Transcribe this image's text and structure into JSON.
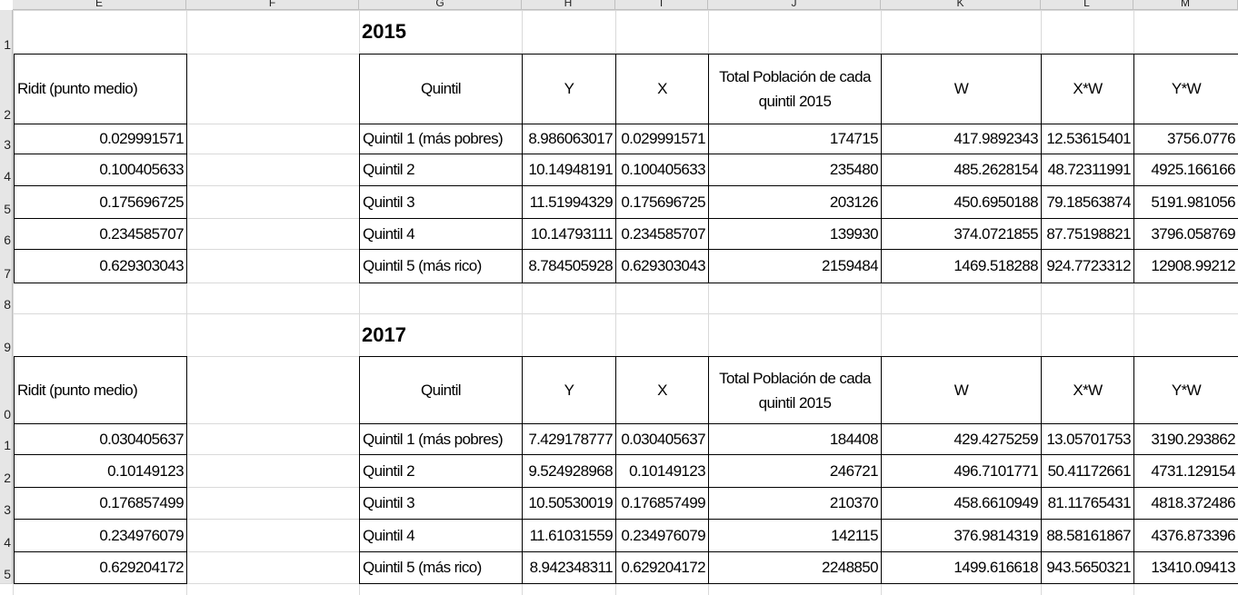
{
  "column_headers": [
    "E",
    "F",
    "G",
    "H",
    "I",
    "J",
    "K",
    "L",
    "M"
  ],
  "row_numbers": [
    "1",
    "2",
    "3",
    "4",
    "5",
    "6",
    "7",
    "8",
    "9",
    "0",
    "1",
    "2",
    "3",
    "4",
    "5"
  ],
  "t2015": {
    "year": "2015",
    "ridit_header": "Ridit (punto medio)",
    "headers": [
      "Quintil",
      "Y",
      "X",
      "Total Población de cada quintil 2015",
      "W",
      "X*W",
      "Y*W"
    ],
    "ridit": [
      "0.029991571",
      "0.100405633",
      "0.175696725",
      "0.234585707",
      "0.629303043"
    ],
    "rows": [
      [
        "Quintil 1 (más pobres)",
        "8.986063017",
        "0.029991571",
        "174715",
        "417.9892343",
        "12.53615401",
        "3756.0776"
      ],
      [
        "Quintil 2",
        "10.14948191",
        "0.100405633",
        "235480",
        "485.2628154",
        "48.72311991",
        "4925.166166"
      ],
      [
        "Quintil 3",
        "11.51994329",
        "0.175696725",
        "203126",
        "450.6950188",
        "79.18563874",
        "5191.981056"
      ],
      [
        "Quintil 4",
        "10.14793111",
        "0.234585707",
        "139930",
        "374.0721855",
        "87.75198821",
        "3796.058769"
      ],
      [
        "Quintil 5 (más rico)",
        "8.784505928",
        "0.629303043",
        "2159484",
        "1469.518288",
        "924.7723312",
        "12908.99212"
      ]
    ]
  },
  "t2017": {
    "year": "2017",
    "ridit_header": "Ridit (punto medio)",
    "headers": [
      "Quintil",
      "Y",
      "X",
      "Total Población de cada quintil 2015",
      "W",
      "X*W",
      "Y*W"
    ],
    "ridit": [
      "0.030405637",
      "0.10149123",
      "0.176857499",
      "0.234976079",
      "0.629204172"
    ],
    "rows": [
      [
        "Quintil 1 (más pobres)",
        "7.429178777",
        "0.030405637",
        "184408",
        "429.4275259",
        "13.05701753",
        "3190.293862"
      ],
      [
        "Quintil 2",
        "9.524928968",
        "0.10149123",
        "246721",
        "496.7101771",
        "50.41172661",
        "4731.129154"
      ],
      [
        "Quintil 3",
        "10.50530019",
        "0.176857499",
        "210370",
        "458.6610949",
        "81.11765431",
        "4818.372486"
      ],
      [
        "Quintil 4",
        "11.61031559",
        "0.234976079",
        "142115",
        "376.9814319",
        "88.58161867",
        "4376.873396"
      ],
      [
        "Quintil 5 (más rico)",
        "8.942348311",
        "0.629204172",
        "2248850",
        "1499.616618",
        "943.5650321",
        "13410.09413"
      ]
    ]
  }
}
